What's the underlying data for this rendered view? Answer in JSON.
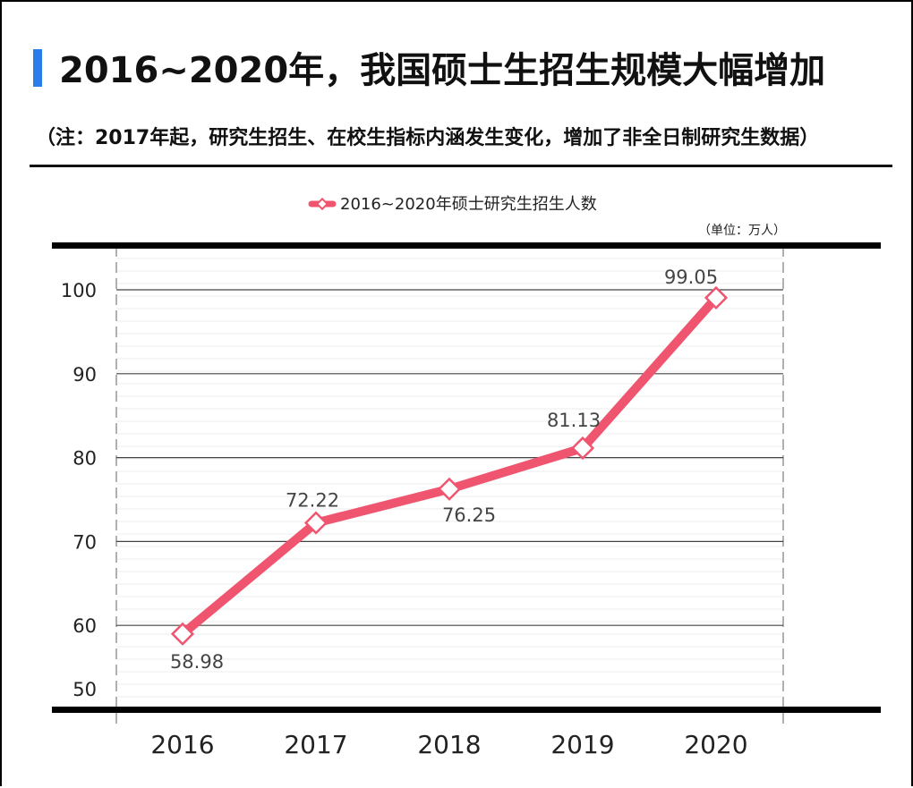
{
  "header": {
    "title": "2016~2020年，我国硕士生招生规模大幅增加",
    "note": "（注：2017年起，研究生招生、在校生指标内涵发生变化，增加了非全日制研究生数据）",
    "accent_color": "#2b7de9"
  },
  "chart_data": {
    "type": "line",
    "categories": [
      "2016",
      "2017",
      "2018",
      "2019",
      "2020"
    ],
    "series": [
      {
        "name": "2016~2020年硕士研究生招生人数",
        "values": [
          58.98,
          72.22,
          76.25,
          81.13,
          99.05
        ],
        "color": "#f0556f"
      }
    ],
    "unit": "（单位：万人）",
    "ylim": [
      50,
      105
    ],
    "yticks": [
      50,
      60,
      70,
      80,
      90,
      100
    ],
    "data_labels": [
      "58.98",
      "72.22",
      "76.25",
      "81.13",
      "99.05"
    ],
    "grid": true,
    "legend": "top-center"
  }
}
